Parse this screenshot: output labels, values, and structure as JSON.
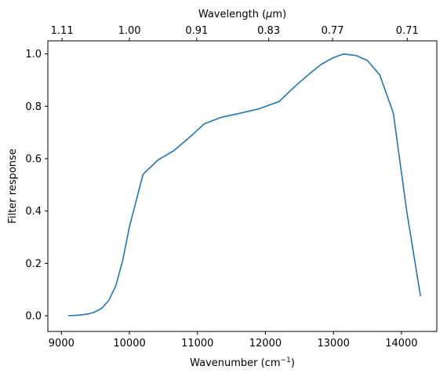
{
  "chart_data": {
    "type": "line",
    "xlabel": "Wavenumber (cm",
    "xlabel_sup": "−1",
    "xlabel_end": ")",
    "ylabel": "Filter response",
    "top_xlabel_prefix": "Wavelength (",
    "top_xlabel_mu": "μ",
    "top_xlabel_suffix": "m)",
    "xlim": [
      8800,
      14520
    ],
    "ylim": [
      -0.06,
      1.05
    ],
    "x_ticks": [
      9000,
      10000,
      11000,
      12000,
      13000,
      14000
    ],
    "x_tick_labels": [
      "9000",
      "10000",
      "11000",
      "12000",
      "13000",
      "14000"
    ],
    "y_ticks": [
      0.0,
      0.2,
      0.4,
      0.6,
      0.8,
      1.0
    ],
    "y_tick_labels": [
      "0.0",
      "0.2",
      "0.4",
      "0.6",
      "0.8",
      "1.0"
    ],
    "top_ticks": [
      {
        "wavenumber": 9009,
        "label": "1.11"
      },
      {
        "wavenumber": 10000,
        "label": "1.00"
      },
      {
        "wavenumber": 10989,
        "label": "0.91"
      },
      {
        "wavenumber": 12048,
        "label": "0.83"
      },
      {
        "wavenumber": 12987,
        "label": "0.77"
      },
      {
        "wavenumber": 14085,
        "label": "0.71"
      }
    ],
    "series": [
      {
        "color": "#1f77b4",
        "x": [
          9100,
          9250,
          9400,
          9500,
          9600,
          9700,
          9800,
          9900,
          10000,
          10200,
          10420,
          10650,
          10900,
          11100,
          11350,
          11600,
          11900,
          12200,
          12450,
          12650,
          12820,
          13000,
          13150,
          13330,
          13500,
          13680,
          13880,
          14080,
          14280
        ],
        "y": [
          0.0,
          0.002,
          0.007,
          0.015,
          0.03,
          0.06,
          0.115,
          0.21,
          0.34,
          0.54,
          0.595,
          0.63,
          0.685,
          0.733,
          0.758,
          0.772,
          0.79,
          0.818,
          0.88,
          0.925,
          0.96,
          0.986,
          1.0,
          0.994,
          0.975,
          0.92,
          0.775,
          0.395,
          0.075
        ]
      }
    ],
    "grid": false
  }
}
